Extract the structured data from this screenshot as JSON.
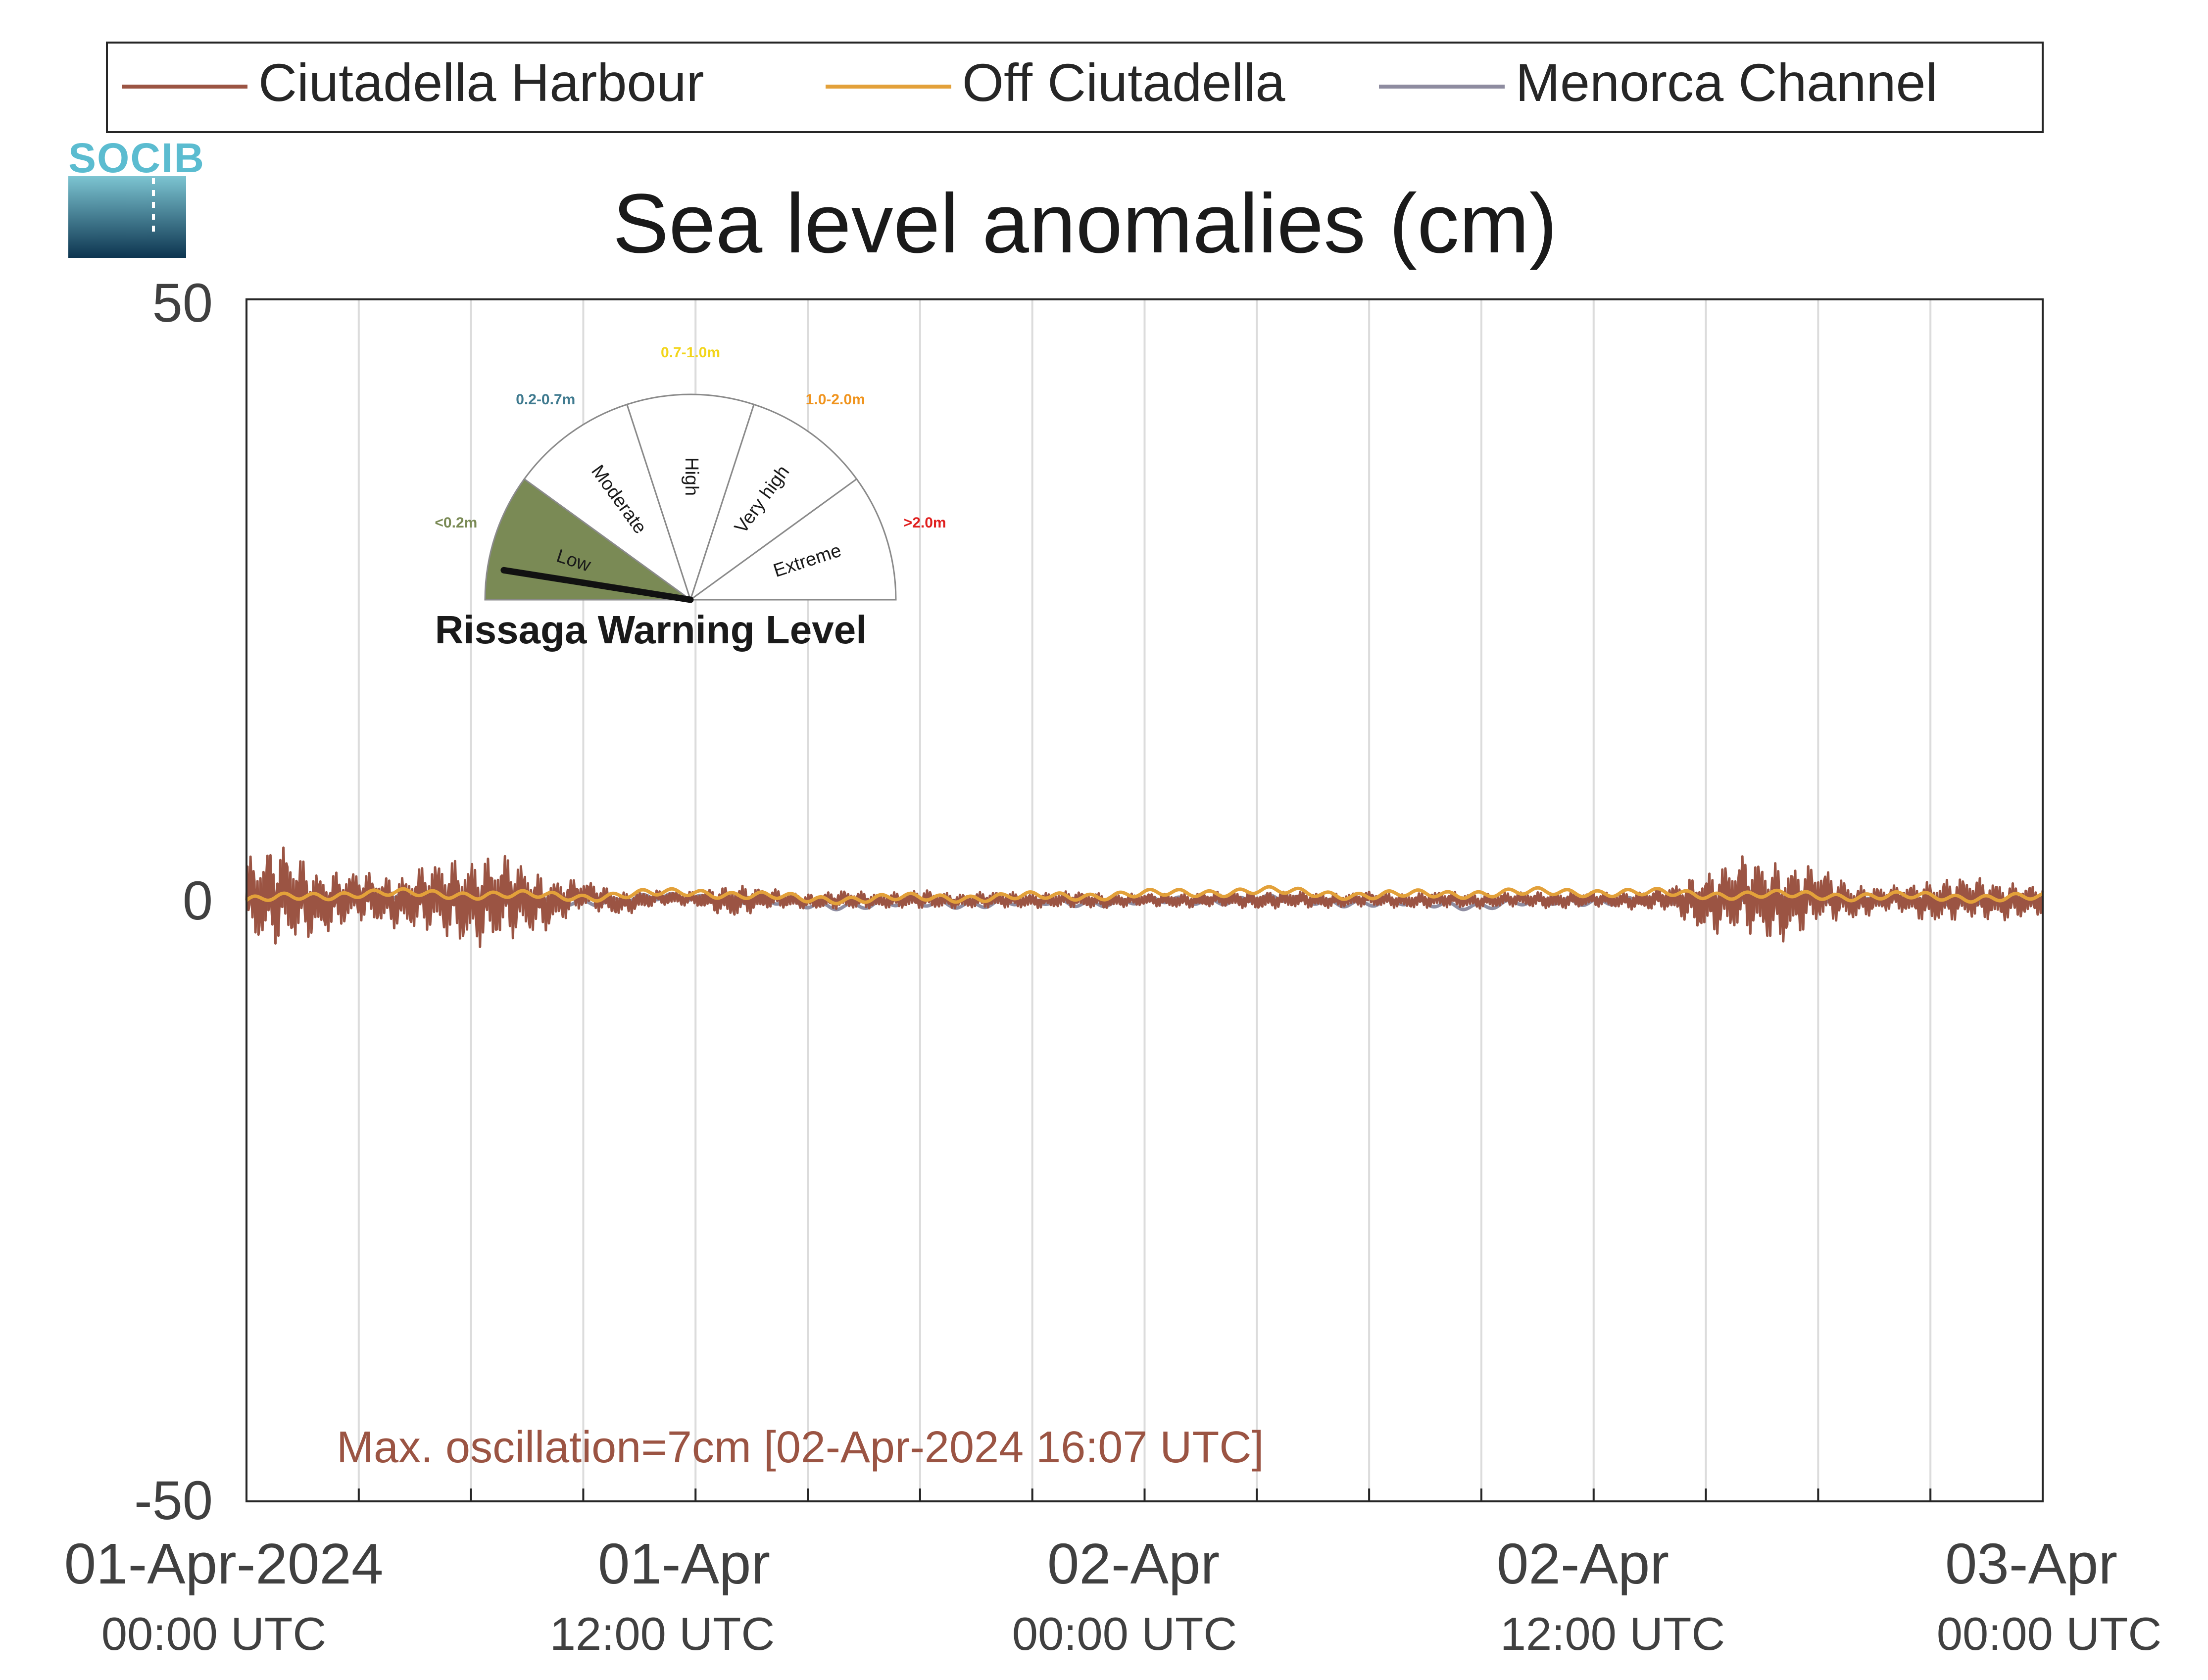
{
  "chart_data": {
    "type": "line",
    "title": "Sea level anomalies (cm)",
    "xlabel": "",
    "ylabel": "",
    "ylim": [
      -50,
      50
    ],
    "yticks": [
      50,
      0,
      -50
    ],
    "xlim": [
      "2024-04-01 00:00",
      "2024-04-03 00:00"
    ],
    "xtick_labels": [
      {
        "date": "01-Apr-2024",
        "time": "00:00 UTC"
      },
      {
        "date": "01-Apr",
        "time": "12:00 UTC"
      },
      {
        "date": "02-Apr",
        "time": "00:00 UTC"
      },
      {
        "date": "02-Apr",
        "time": "12:00 UTC"
      },
      {
        "date": "03-Apr",
        "time": "00:00 UTC"
      }
    ],
    "grid": "vertical lines every 3 hours",
    "legend_position": "top",
    "series": [
      {
        "name": "Ciutadella Harbour",
        "color": "#9b5443",
        "x": [
          "2024-04-01 00:00",
          "2024-04-01 01:00",
          "2024-04-01 02:00",
          "2024-04-01 03:00",
          "2024-04-01 04:00",
          "2024-04-01 05:00",
          "2024-04-01 06:00",
          "2024-04-01 07:00",
          "2024-04-01 08:00",
          "2024-04-01 09:00",
          "2024-04-01 10:00",
          "2024-04-01 11:00",
          "2024-04-01 12:00",
          "2024-04-01 13:00",
          "2024-04-01 14:00",
          "2024-04-01 15:00",
          "2024-04-01 16:00",
          "2024-04-01 17:00",
          "2024-04-01 18:00",
          "2024-04-01 19:00",
          "2024-04-01 20:00",
          "2024-04-01 21:00",
          "2024-04-01 22:00",
          "2024-04-01 23:00",
          "2024-04-02 00:00",
          "2024-04-02 01:00",
          "2024-04-02 02:00",
          "2024-04-02 03:00",
          "2024-04-02 04:00",
          "2024-04-02 05:00",
          "2024-04-02 06:00",
          "2024-04-02 07:00",
          "2024-04-02 08:00",
          "2024-04-02 09:00",
          "2024-04-02 10:00",
          "2024-04-02 11:00",
          "2024-04-02 12:00",
          "2024-04-02 13:00",
          "2024-04-02 14:00",
          "2024-04-02 15:00",
          "2024-04-02 16:00",
          "2024-04-02 17:00",
          "2024-04-02 18:00",
          "2024-04-02 19:00",
          "2024-04-02 20:00",
          "2024-04-02 21:00",
          "2024-04-02 22:00",
          "2024-04-02 23:00",
          "2024-04-03 00:00"
        ],
        "y": [
          0.0,
          3.6,
          -2.4,
          3.1,
          -1.8,
          2.5,
          -2.0,
          2.4,
          -2.7,
          3.8,
          -2.2,
          1.5,
          0.8,
          -0.6,
          1.2,
          -0.7,
          0.5,
          -0.4,
          0.9,
          -0.5,
          0.6,
          -0.4,
          0.7,
          -0.5,
          0.5,
          -0.4,
          0.8,
          -0.3,
          0.7,
          -0.4,
          0.9,
          -0.5,
          0.7,
          -0.5,
          0.9,
          -0.3,
          0.8,
          -0.4,
          1.2,
          -2.0,
          3.8,
          -2.6,
          3.6,
          -1.4,
          1.5,
          -1.2,
          1.6,
          -1.0,
          0.3
        ],
        "envelope": [
          3.6,
          4.2,
          2.6,
          2.1,
          2.1,
          3.0,
          3.8,
          3.6,
          2.2,
          1.2,
          1.0,
          0.6,
          0.6,
          1.4,
          0.8,
          0.6,
          0.8,
          0.6,
          0.8,
          0.6,
          0.7,
          0.6,
          0.7,
          0.6,
          0.5,
          0.6,
          0.6,
          0.7,
          0.7,
          0.6,
          0.6,
          0.6,
          0.7,
          0.6,
          0.6,
          0.7,
          0.6,
          0.7,
          1.0,
          2.6,
          3.2,
          3.4,
          2.4,
          1.4,
          1.0,
          1.8,
          1.8,
          1.6,
          1.2
        ]
      },
      {
        "name": "Off Ciutadella",
        "color": "#e3a13a",
        "x": [
          "2024-04-01 00:00",
          "2024-04-01 03:00",
          "2024-04-01 06:00",
          "2024-04-01 09:00",
          "2024-04-01 12:00",
          "2024-04-01 15:00",
          "2024-04-01 18:00",
          "2024-04-01 21:00",
          "2024-04-02 00:00",
          "2024-04-02 03:00",
          "2024-04-02 06:00",
          "2024-04-02 09:00",
          "2024-04-02 12:00",
          "2024-04-02 15:00",
          "2024-04-02 18:00",
          "2024-04-02 21:00",
          "2024-04-03 00:00"
        ],
        "y": [
          0.0,
          0.6,
          0.5,
          0.3,
          0.7,
          0.1,
          0.2,
          0.3,
          0.5,
          0.8,
          0.4,
          0.6,
          0.7,
          0.5,
          0.4,
          0.3,
          0.2
        ]
      },
      {
        "name": "Menorca Channel",
        "color": "#8e8ca0",
        "x": [
          "2024-04-01 00:00",
          "2024-04-01 03:00",
          "2024-04-01 06:00",
          "2024-04-01 09:00",
          "2024-04-01 12:00",
          "2024-04-01 15:00",
          "2024-04-01 18:00",
          "2024-04-01 21:00",
          "2024-04-02 00:00",
          "2024-04-02 03:00",
          "2024-04-02 06:00",
          "2024-04-02 09:00",
          "2024-04-02 12:00",
          "2024-04-02 15:00",
          "2024-04-02 18:00",
          "2024-04-02 21:00",
          "2024-04-03 00:00"
        ],
        "y": [
          -0.2,
          0.2,
          0.0,
          -0.1,
          0.3,
          -0.4,
          -0.3,
          -0.2,
          -0.1,
          0.1,
          -0.2,
          -0.4,
          0.0,
          -0.1,
          0.1,
          -0.2,
          -0.1
        ]
      }
    ],
    "annotation": "Max. oscillation=7cm [02-Apr-2024 16:07 UTC]"
  },
  "logo": {
    "text": "SOCIB"
  },
  "gauge": {
    "title": "Rissaga Warning Level",
    "current_level": "Low",
    "needle_fraction": 0.05,
    "sectors": [
      {
        "label": "Low",
        "range": "<0.2m",
        "color": "#7a8a55"
      },
      {
        "label": "Moderate",
        "range": "0.2-0.7m",
        "color": "#3f7a8f"
      },
      {
        "label": "High",
        "range": "0.7-1.0m",
        "color": "#f2d51a"
      },
      {
        "label": "Very high",
        "range": "1.0-2.0m",
        "color": "#f0941e"
      },
      {
        "label": "Extreme",
        "range": ">2.0m",
        "color": "#e0201f"
      }
    ]
  }
}
